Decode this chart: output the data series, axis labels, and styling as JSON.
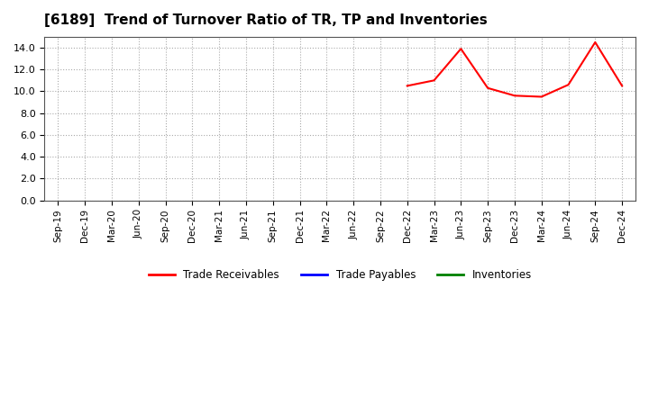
{
  "title": "[6189]  Trend of Turnover Ratio of TR, TP and Inventories",
  "x_labels": [
    "Sep-19",
    "Dec-19",
    "Mar-20",
    "Jun-20",
    "Sep-20",
    "Dec-20",
    "Mar-21",
    "Jun-21",
    "Sep-21",
    "Dec-21",
    "Mar-22",
    "Jun-22",
    "Sep-22",
    "Dec-22",
    "Mar-23",
    "Jun-23",
    "Sep-23",
    "Dec-23",
    "Mar-24",
    "Jun-24",
    "Sep-24",
    "Dec-24"
  ],
  "trade_receivables": {
    "x_indices": [
      13,
      14,
      15,
      16,
      17,
      18,
      19,
      20,
      21
    ],
    "values": [
      10.5,
      11.0,
      13.9,
      10.3,
      9.6,
      9.5,
      10.6,
      14.5,
      10.5
    ]
  },
  "trade_payables": {
    "x_indices": [],
    "values": []
  },
  "inventories": {
    "x_indices": [],
    "values": []
  },
  "ylim": [
    0.0,
    15.0
  ],
  "yticks": [
    0.0,
    2.0,
    4.0,
    6.0,
    8.0,
    10.0,
    12.0,
    14.0
  ],
  "colors": {
    "trade_receivables": "#ff0000",
    "trade_payables": "#0000ff",
    "inventories": "#008000",
    "background": "#ffffff",
    "grid": "#aaaaaa"
  },
  "legend_labels": [
    "Trade Receivables",
    "Trade Payables",
    "Inventories"
  ]
}
